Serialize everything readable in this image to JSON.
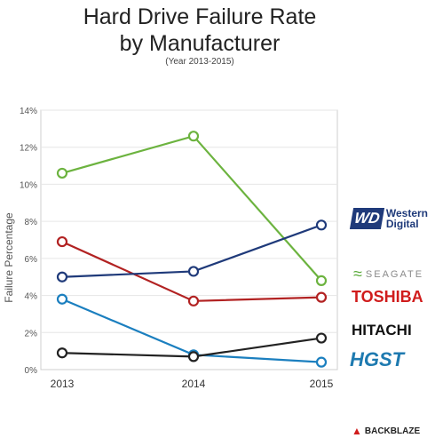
{
  "chart_data": {
    "type": "line",
    "title_lines": [
      "Hard Drive Failure Rate",
      "by Manufacturer"
    ],
    "subtitle": "(Year 2013-2015)",
    "xlabel": "",
    "ylabel": "Failure Percentage",
    "x": [
      "2013",
      "2014",
      "2015"
    ],
    "ylim": [
      0,
      14
    ],
    "yticks": [
      {
        "value": 0,
        "label": "0%"
      },
      {
        "value": 2,
        "label": "2%"
      },
      {
        "value": 4,
        "label": "4%"
      },
      {
        "value": 6,
        "label": "6%"
      },
      {
        "value": 8,
        "label": "8%"
      },
      {
        "value": 10,
        "label": "10%"
      },
      {
        "value": 12,
        "label": "12%"
      },
      {
        "value": 14,
        "label": "14%"
      }
    ],
    "grid": true,
    "series": [
      {
        "key": "seagate",
        "color": "#6cb33f",
        "values": [
          10.6,
          12.6,
          4.8
        ]
      },
      {
        "key": "toshiba",
        "color": "#b22222",
        "values": [
          6.9,
          3.7,
          3.9
        ]
      },
      {
        "key": "wd",
        "color": "#1f3a7a",
        "values": [
          5.0,
          5.3,
          7.8
        ]
      },
      {
        "key": "hgst",
        "color": "#1b7fbf",
        "values": [
          3.8,
          0.8,
          0.4
        ]
      },
      {
        "key": "hitachi",
        "color": "#222222",
        "values": [
          0.9,
          0.7,
          1.7
        ]
      }
    ]
  },
  "legend": {
    "wd_badge": "WD",
    "wd_line1": "Western",
    "wd_line2": "Digital",
    "seagate": "SEAGATE",
    "toshiba": "TOSHIBA",
    "hitachi": "HITACHI",
    "hgst": "HGST",
    "backblaze": "BACKBLAZE"
  }
}
